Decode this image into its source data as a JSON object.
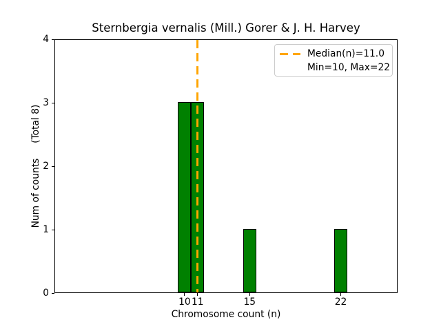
{
  "chart_data": {
    "type": "bar",
    "title": "Sternbergia vernalis (Mill.) Gorer & J. H. Harvey",
    "xlabel": "Chromosome count (n)",
    "ylabel": "Num of counts     (Total 8)",
    "categories": [
      10,
      11,
      15,
      22
    ],
    "values": [
      3,
      3,
      1,
      1
    ],
    "bar_width": 1,
    "bar_color": "#008000",
    "bar_edge_color": "#000000",
    "median_line": {
      "x": 11.0,
      "color": "#FFA500",
      "style": "dashed"
    },
    "legend": {
      "position": "upper-right",
      "entries": [
        {
          "label": "Median(n)=11.0",
          "marker": "orange-dashed-line"
        },
        {
          "label": "Min=10, Max=22",
          "marker": "none"
        }
      ]
    },
    "xticks": [
      10,
      11,
      15,
      22
    ],
    "yticks": [
      0,
      1,
      2,
      3,
      4
    ],
    "xlim": [
      0,
      26.37
    ],
    "ylim": [
      0,
      4
    ],
    "grid": false
  }
}
